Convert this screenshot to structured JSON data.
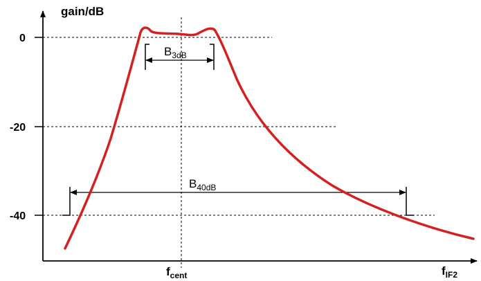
{
  "chart_data": {
    "type": "line",
    "ylabel": "gain/dB",
    "y_ticks": [
      "0",
      "-20",
      "-40"
    ],
    "x_markers": {
      "center": "f",
      "center_sub": "cent",
      "axis_end": "f",
      "axis_end_sub": "IF2"
    },
    "bandwidth_3db": {
      "label": "B",
      "sub": "3dB"
    },
    "bandwidth_40db": {
      "label": "B",
      "sub": "40dB"
    },
    "series": [
      {
        "color": "#d42020",
        "values": "filter response curve (gain in dB vs IF frequency)"
      }
    ]
  }
}
